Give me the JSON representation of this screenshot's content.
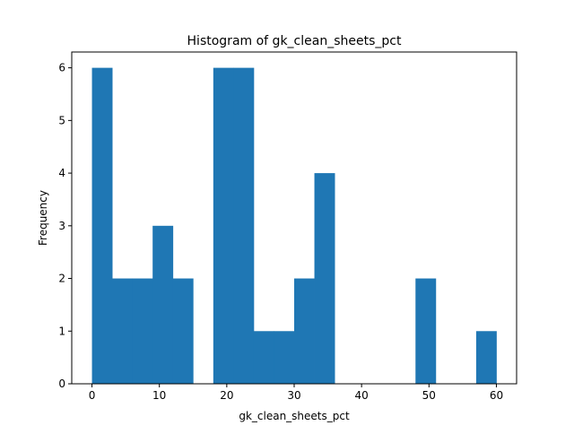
{
  "chart_data": {
    "type": "bar",
    "title": "Histogram of gk_clean_sheets_pct",
    "xlabel": "gk_clean_sheets_pct",
    "ylabel": "Frequency",
    "bin_edges": [
      0,
      3,
      6,
      9,
      12,
      15,
      18,
      21,
      24,
      27,
      30,
      33,
      36,
      39,
      42,
      45,
      48,
      51,
      54,
      57,
      60
    ],
    "values": [
      6,
      2,
      2,
      3,
      2,
      0,
      6,
      6,
      1,
      1,
      2,
      4,
      0,
      0,
      0,
      0,
      2,
      0,
      0,
      1
    ],
    "xlim": [
      -3,
      63
    ],
    "ylim": [
      0,
      6.3
    ],
    "xticks": [
      0,
      10,
      20,
      30,
      40,
      50,
      60
    ],
    "yticks": [
      0,
      1,
      2,
      3,
      4,
      5,
      6
    ],
    "bar_color": "#1f77b4",
    "grid": false
  }
}
